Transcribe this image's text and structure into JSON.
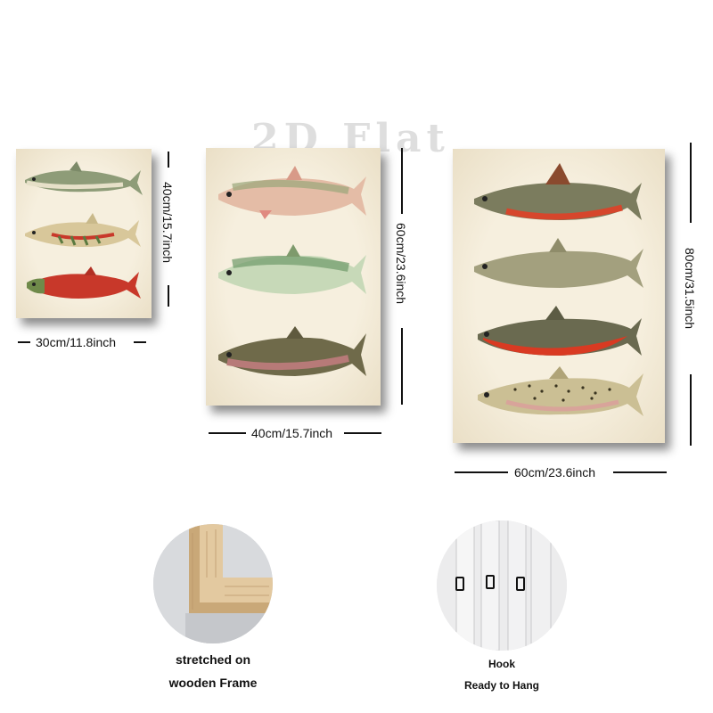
{
  "watermark": "2D Flat",
  "sizes": {
    "small": {
      "width": "30cm/11.8inch",
      "height": "40cm/15.7inch"
    },
    "medium": {
      "width": "40cm/15.7inch",
      "height": "60cm/23.6inch"
    },
    "large": {
      "width": "60cm/23.6inch",
      "height": "80cm/31.5inch"
    }
  },
  "features": {
    "frame": {
      "line1": "stretched on",
      "line2": "wooden Frame"
    },
    "hook": {
      "line1": "Hook",
      "line2": "Ready to Hang"
    }
  },
  "colors": {
    "canvas": "#f3ead7",
    "salmon_red": "#c8382a",
    "trout_green": "#8a9a72"
  }
}
